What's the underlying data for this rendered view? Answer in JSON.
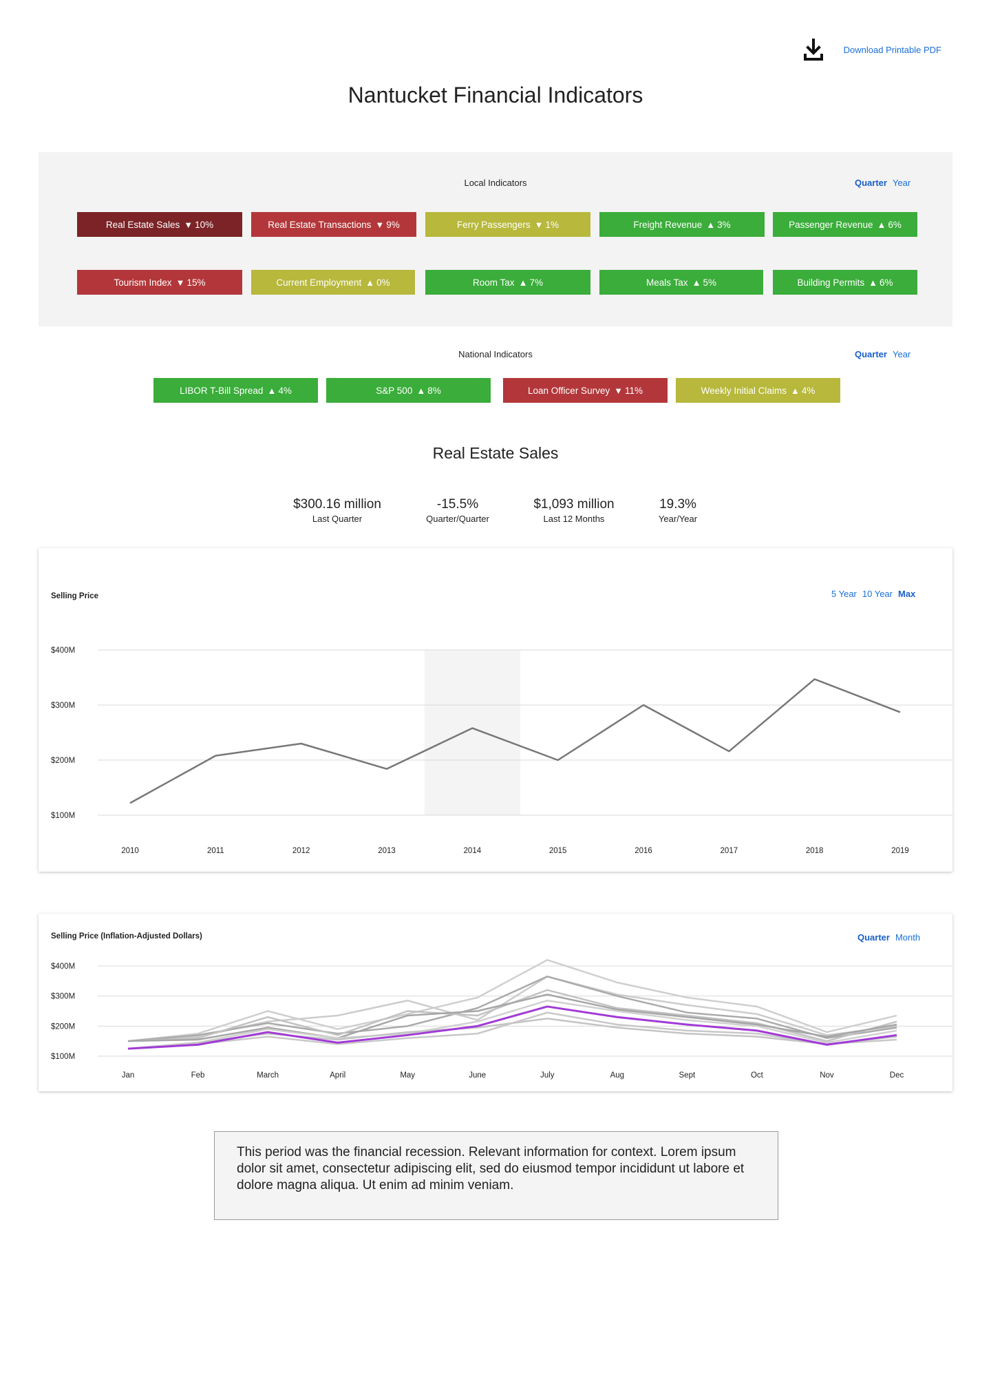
{
  "download": {
    "label": "Download Printable PDF",
    "icon": "download-icon"
  },
  "title": "Nantucket Financial Indicators",
  "local": {
    "label": "Local Indicators",
    "toggle": {
      "quarter": "Quarter",
      "year": "Year",
      "active": "Quarter"
    },
    "row1": [
      {
        "label": "Real Estate Sales",
        "dir": "▼",
        "value": "10%",
        "status": "darkred"
      },
      {
        "label": "Real Estate Transactions",
        "dir": "▼",
        "value": "9%",
        "status": "red"
      },
      {
        "label": "Ferry Passengers",
        "dir": "▼",
        "value": "1%",
        "status": "yellow"
      },
      {
        "label": "Freight Revenue",
        "dir": "▲",
        "value": "3%",
        "status": "green"
      },
      {
        "label": "Passenger Revenue",
        "dir": "▲",
        "value": "6%",
        "status": "green"
      }
    ],
    "row2": [
      {
        "label": "Tourism Index",
        "dir": "▼",
        "value": "15%",
        "status": "red"
      },
      {
        "label": "Current Employment",
        "dir": "▲",
        "value": "0%",
        "status": "yellow"
      },
      {
        "label": "Room Tax",
        "dir": "▲",
        "value": "7%",
        "status": "green"
      },
      {
        "label": "Meals Tax",
        "dir": "▲",
        "value": "5%",
        "status": "green"
      },
      {
        "label": "Building Permits",
        "dir": "▲",
        "value": "6%",
        "status": "green"
      }
    ]
  },
  "national": {
    "label": "National Indicators",
    "toggle": {
      "quarter": "Quarter",
      "year": "Year",
      "active": "Quarter"
    },
    "items": [
      {
        "label": "LIBOR T-Bill Spread",
        "dir": "▲",
        "value": "4%",
        "status": "green"
      },
      {
        "label": "S&P 500",
        "dir": "▲",
        "value": "8%",
        "status": "green"
      },
      {
        "label": "Loan Officer Survey",
        "dir": "▼",
        "value": "11%",
        "status": "red"
      },
      {
        "label": "Weekly Initial Claims",
        "dir": "▲",
        "value": "4%",
        "status": "yellow"
      }
    ]
  },
  "colors": {
    "darkred": "#7b2326",
    "red": "#b3373a",
    "yellow": "#b7b83c",
    "green": "#3aad3a",
    "link": "#1a6fd6",
    "highlight_series": "#a13ad6"
  },
  "section_title": "Real Estate Sales",
  "stats": [
    {
      "value": "$300.16 million",
      "label": "Last Quarter"
    },
    {
      "value": "-15.5%",
      "label": "Quarter/Quarter"
    },
    {
      "value": "$1,093 million",
      "label": "Last 12 Months"
    },
    {
      "value": "19.3%",
      "label": "Year/Year"
    }
  ],
  "chart1_controls": {
    "five": "5 Year",
    "ten": "10 Year",
    "max": "Max",
    "active": "Max"
  },
  "chart2_controls": {
    "quarter": "Quarter",
    "month": "Month",
    "active": "Quarter"
  },
  "chart_data": [
    {
      "type": "line",
      "title": "Selling Price",
      "x": [
        "2010",
        "2011",
        "2012",
        "2013",
        "2014",
        "2015",
        "2016",
        "2017",
        "2018",
        "2019"
      ],
      "series": [
        {
          "values": [
            122,
            208,
            230,
            184,
            258,
            200,
            300,
            216,
            347,
            287
          ]
        }
      ],
      "yticks": [
        "$100M",
        "$200M",
        "$300M",
        "$400M"
      ],
      "ylim": [
        100,
        400
      ],
      "highlight_band": "2014",
      "grid": true
    },
    {
      "type": "line",
      "title": "Selling Price (Inflation-Adjusted Dollars)",
      "x": [
        "Jan",
        "Feb",
        "March",
        "April",
        "May",
        "June",
        "July",
        "Aug",
        "Sept",
        "Oct",
        "Nov",
        "Dec"
      ],
      "yticks": [
        "$100M",
        "$200M",
        "$300M",
        "$400M"
      ],
      "ylim": [
        100,
        400
      ],
      "grid": true,
      "series": [
        {
          "values": [
            150,
            175,
            250,
            190,
            240,
            295,
            420,
            345,
            295,
            265,
            180,
            235
          ],
          "color": "#cfcfcf"
        },
        {
          "values": [
            150,
            165,
            215,
            235,
            285,
            220,
            365,
            305,
            270,
            240,
            170,
            200
          ],
          "color": "#cccccc"
        },
        {
          "values": [
            150,
            170,
            210,
            175,
            200,
            260,
            365,
            300,
            245,
            225,
            160,
            195
          ],
          "color": "#aaaaaa"
        },
        {
          "values": [
            150,
            160,
            230,
            170,
            250,
            235,
            320,
            260,
            235,
            210,
            150,
            215
          ],
          "color": "#c2c2c2"
        },
        {
          "values": [
            150,
            155,
            195,
            160,
            235,
            250,
            305,
            255,
            230,
            205,
            165,
            205
          ],
          "color": "#a6a6a6"
        },
        {
          "values": [
            125,
            145,
            190,
            160,
            175,
            215,
            285,
            250,
            220,
            200,
            145,
            185
          ],
          "color": "#d0d0d0"
        },
        {
          "values": [
            125,
            140,
            165,
            140,
            160,
            175,
            245,
            205,
            185,
            175,
            140,
            155
          ],
          "color": "#c8c8c8"
        },
        {
          "values": [
            125,
            145,
            175,
            155,
            180,
            195,
            225,
            195,
            175,
            165,
            140,
            165
          ],
          "color": "#c4c4c4"
        },
        {
          "values": [
            125,
            138,
            180,
            145,
            170,
            200,
            265,
            230,
            205,
            185,
            138,
            170
          ],
          "color": "#a13ad6",
          "highlight": true
        }
      ]
    }
  ],
  "note": "This period was the financial recession. Relevant information for context. Lorem ipsum dolor sit amet, consectetur adipiscing elit, sed do eiusmod tempor incididunt ut labore et dolore magna aliqua. Ut enim ad minim veniam."
}
